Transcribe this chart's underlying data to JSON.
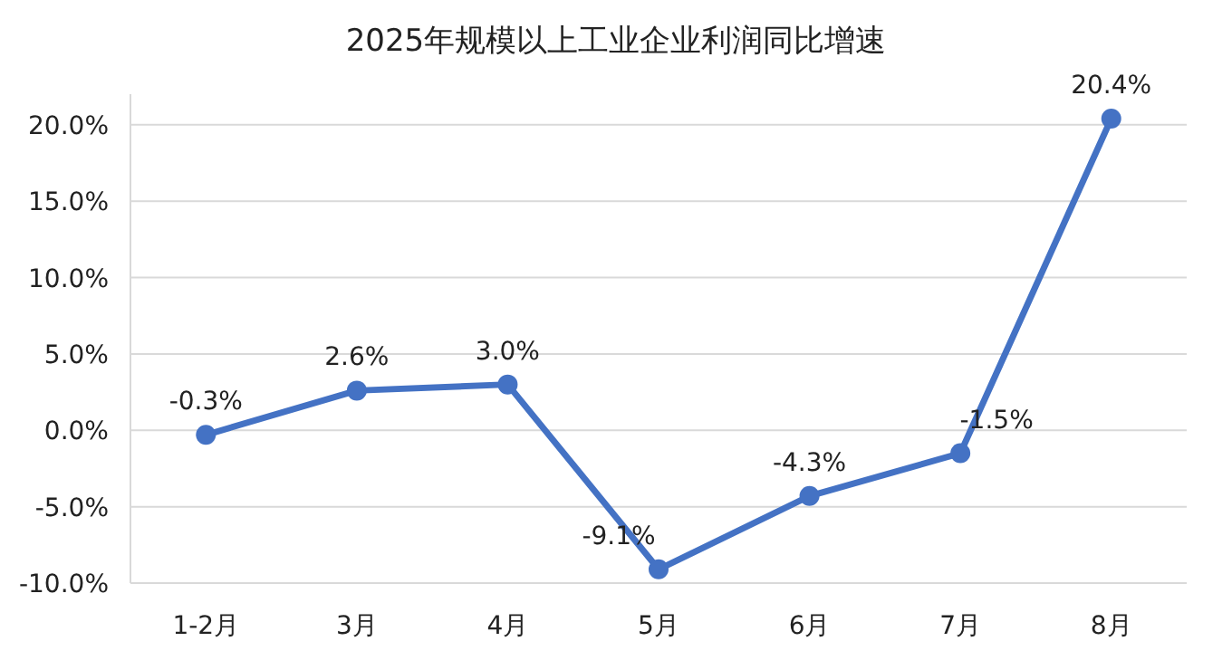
{
  "chart_data": {
    "type": "line",
    "title": "2025年规模以上工业企业利润同比增速",
    "categories": [
      "1-2月",
      "3月",
      "4月",
      "5月",
      "6月",
      "7月",
      "8月"
    ],
    "values": [
      -0.3,
      2.6,
      3.0,
      -9.1,
      -4.3,
      -1.5,
      20.4
    ],
    "value_labels": [
      "-0.3%",
      "2.6%",
      "3.0%",
      "-9.1%",
      "-4.3%",
      "-1.5%",
      "20.4%"
    ],
    "color": "#4472c4",
    "marker": "circle",
    "grid": "y",
    "ylim": [
      -10,
      22
    ],
    "yticks": [
      {
        "value": -10,
        "label": "-10.0%"
      },
      {
        "value": -5,
        "label": "-5.0%"
      },
      {
        "value": 0,
        "label": "0.0%"
      },
      {
        "value": 5,
        "label": "5.0%"
      },
      {
        "value": 10,
        "label": "10.0%"
      },
      {
        "value": 15,
        "label": "15.0%"
      },
      {
        "value": 20,
        "label": "20.0%"
      }
    ]
  }
}
